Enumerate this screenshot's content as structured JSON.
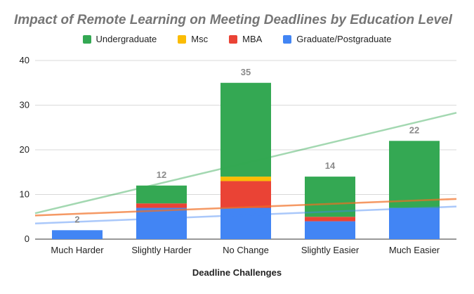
{
  "chart_data": {
    "type": "bar",
    "stacked": true,
    "title": "Impact of Remote Learning on Meeting Deadlines by Education Level",
    "xlabel": "Deadline Challenges",
    "ylabel": "",
    "ylim": [
      0,
      40
    ],
    "yticks": [
      "0",
      "10",
      "20",
      "30",
      "40"
    ],
    "grid": true,
    "legend_position": "top",
    "categories": [
      "Much Harder",
      "Slightly Harder",
      "No Change",
      "Slightly Easier",
      "Much Easier"
    ],
    "series": [
      {
        "name": "Graduate/Postgraduate",
        "color": "#4285f4",
        "values": [
          2,
          7,
          7,
          4,
          7
        ]
      },
      {
        "name": "MBA",
        "color": "#ea4335",
        "values": [
          0,
          1,
          6,
          1,
          0
        ]
      },
      {
        "name": "Msc",
        "color": "#fbbc04",
        "values": [
          0,
          0,
          1,
          0,
          0
        ]
      },
      {
        "name": "Undergraduate",
        "color": "#34a853",
        "values": [
          0,
          4,
          21,
          9,
          15
        ]
      }
    ],
    "totals": [
      2,
      12,
      35,
      14,
      22
    ],
    "total_labels": [
      "2",
      "12",
      "35",
      "14",
      "22"
    ],
    "legend_order": [
      "Undergraduate",
      "Msc",
      "MBA",
      "Graduate/Postgraduate"
    ],
    "trendlines": [
      {
        "series": "Undergraduate",
        "color": "#34a853",
        "start": 5.8,
        "end": 28.3
      },
      {
        "series": "Msc",
        "color": "#fbbc04",
        "start": 5.3,
        "end": 9.0
      },
      {
        "series": "MBA",
        "color": "#ea4335",
        "start": 5.3,
        "end": 9.0
      },
      {
        "series": "Graduate/Postgraduate",
        "color": "#4285f4",
        "start": 3.5,
        "end": 7.3
      }
    ]
  }
}
